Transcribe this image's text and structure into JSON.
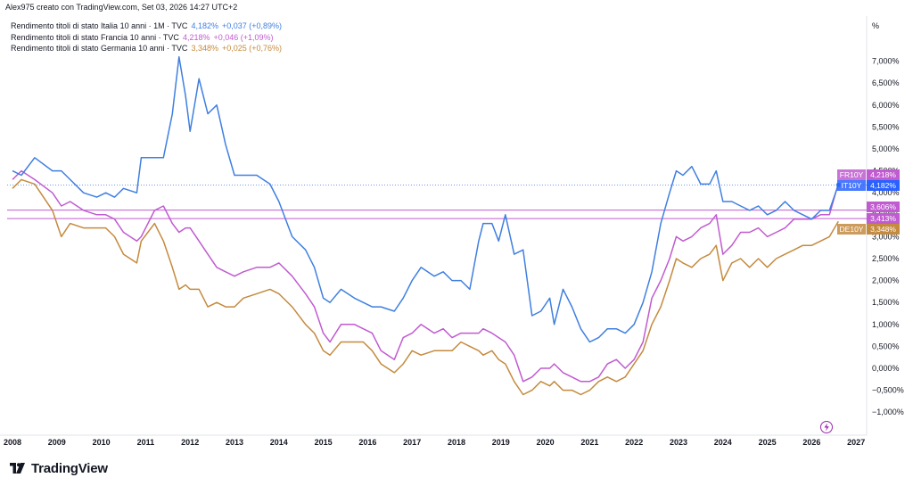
{
  "header": {
    "created_by": "Alex975 creato con TradingView.com, Set 03, 2026 14:27 UTC+2"
  },
  "legend": [
    {
      "name": "Rendimento titoli di stato Italia 10 anni · 1M · TVC",
      "value": "4,182%",
      "change": "+0,037 (+0,89%)",
      "color": "#3f7fe0"
    },
    {
      "name": "Rendimento titoli di stato Francia 10 anni · TVC",
      "value": "4,218%",
      "change": "+0,046 (+1,09%)",
      "color": "#c05bd0"
    },
    {
      "name": "Rendimento titoli di stato Germania 10 anni · TVC",
      "value": "3,348%",
      "change": "+0,025 (+0,76%)",
      "color": "#c48a3e"
    }
  ],
  "brand": {
    "name": "TradingView"
  },
  "axis": {
    "unit": "%"
  },
  "badges": [
    {
      "label": "FR10Y",
      "value": "4,218%",
      "color": "#c05bd0"
    },
    {
      "label": "IT10Y",
      "value": "4,182%",
      "color": "#2962ff"
    },
    {
      "label": "",
      "value": "3,606%",
      "color": "#c05bd0"
    },
    {
      "label": "",
      "value": "3,413%",
      "color": "#c05bd0"
    },
    {
      "label": "DE10Y",
      "value": "3,348%",
      "color": "#c48a3e"
    }
  ],
  "chart_data": {
    "type": "line",
    "xlabel": "",
    "ylabel": "%",
    "xlim": [
      2008.0,
      2027.4
    ],
    "ylim": [
      -1.4,
      8.2
    ],
    "x_ticks": [
      "2008",
      "2009",
      "2010",
      "2011",
      "2012",
      "2013",
      "2014",
      "2015",
      "2016",
      "2017",
      "2018",
      "2019",
      "2020",
      "2021",
      "2022",
      "2023",
      "2024",
      "2025",
      "2026",
      "2027"
    ],
    "y_ticks": [
      "7,000%",
      "6,500%",
      "6,000%",
      "5,500%",
      "5,000%",
      "4,500%",
      "4,000%",
      "3,500%",
      "3,000%",
      "2,500%",
      "2,000%",
      "1,500%",
      "1,000%",
      "0,500%",
      "0,000%",
      "−0,500%",
      "−1,000%"
    ],
    "y_tick_values": [
      7,
      6.5,
      6,
      5.5,
      5,
      4.5,
      4,
      3.5,
      3,
      2.5,
      2,
      1.5,
      1,
      0.5,
      0,
      -0.5,
      -1
    ],
    "horizontal_levels": [
      3.606,
      3.413
    ],
    "series": [
      {
        "name": "IT10Y",
        "color": "#3f7fe0",
        "x": [
          2008.0,
          2008.2,
          2008.5,
          2008.9,
          2009.1,
          2009.3,
          2009.6,
          2009.9,
          2010.1,
          2010.3,
          2010.5,
          2010.8,
          2010.9,
          2011.2,
          2011.4,
          2011.6,
          2011.75,
          2011.9,
          2012.0,
          2012.2,
          2012.4,
          2012.6,
          2012.8,
          2013.0,
          2013.2,
          2013.5,
          2013.8,
          2014.0,
          2014.3,
          2014.6,
          2014.8,
          2015.0,
          2015.15,
          2015.4,
          2015.7,
          2015.9,
          2016.1,
          2016.3,
          2016.6,
          2016.8,
          2017.0,
          2017.2,
          2017.5,
          2017.7,
          2017.9,
          2018.1,
          2018.3,
          2018.5,
          2018.6,
          2018.8,
          2018.95,
          2019.1,
          2019.3,
          2019.5,
          2019.7,
          2019.9,
          2020.1,
          2020.2,
          2020.4,
          2020.6,
          2020.8,
          2021.0,
          2021.2,
          2021.4,
          2021.6,
          2021.8,
          2022.0,
          2022.2,
          2022.4,
          2022.6,
          2022.8,
          2022.95,
          2023.1,
          2023.3,
          2023.5,
          2023.7,
          2023.85,
          2024.0,
          2024.2,
          2024.4,
          2024.6,
          2024.8,
          2025.0,
          2025.2,
          2025.4,
          2025.6,
          2025.8,
          2026.0,
          2026.2,
          2026.4,
          2026.6
        ],
        "values": [
          4.5,
          4.4,
          4.8,
          4.5,
          4.5,
          4.3,
          4.0,
          3.9,
          4.0,
          3.9,
          4.1,
          4.0,
          4.8,
          4.8,
          4.8,
          5.8,
          7.1,
          6.2,
          5.4,
          6.6,
          5.8,
          6.0,
          5.1,
          4.4,
          4.4,
          4.4,
          4.2,
          3.8,
          3.0,
          2.7,
          2.3,
          1.6,
          1.5,
          1.8,
          1.6,
          1.5,
          1.4,
          1.4,
          1.3,
          1.6,
          2.0,
          2.3,
          2.1,
          2.2,
          2.0,
          2.0,
          1.8,
          2.9,
          3.3,
          3.3,
          2.9,
          3.5,
          2.6,
          2.7,
          1.2,
          1.3,
          1.6,
          1.0,
          1.8,
          1.4,
          0.9,
          0.6,
          0.7,
          0.9,
          0.9,
          0.8,
          1.0,
          1.5,
          2.2,
          3.3,
          4.0,
          4.5,
          4.4,
          4.6,
          4.2,
          4.2,
          4.5,
          3.8,
          3.8,
          3.7,
          3.6,
          3.7,
          3.5,
          3.6,
          3.8,
          3.6,
          3.5,
          3.4,
          3.6,
          3.6,
          4.18
        ]
      },
      {
        "name": "FR10Y",
        "color": "#c05bd0",
        "x": [
          2008.0,
          2008.2,
          2008.5,
          2008.9,
          2009.1,
          2009.3,
          2009.6,
          2009.9,
          2010.1,
          2010.3,
          2010.5,
          2010.8,
          2010.9,
          2011.2,
          2011.4,
          2011.6,
          2011.75,
          2011.9,
          2012.0,
          2012.2,
          2012.4,
          2012.6,
          2012.8,
          2013.0,
          2013.2,
          2013.5,
          2013.8,
          2014.0,
          2014.3,
          2014.6,
          2014.8,
          2015.0,
          2015.15,
          2015.4,
          2015.7,
          2015.9,
          2016.1,
          2016.3,
          2016.6,
          2016.8,
          2017.0,
          2017.2,
          2017.5,
          2017.7,
          2017.9,
          2018.1,
          2018.3,
          2018.5,
          2018.6,
          2018.8,
          2018.95,
          2019.1,
          2019.3,
          2019.5,
          2019.7,
          2019.9,
          2020.1,
          2020.2,
          2020.4,
          2020.6,
          2020.8,
          2021.0,
          2021.2,
          2021.4,
          2021.6,
          2021.8,
          2022.0,
          2022.2,
          2022.4,
          2022.6,
          2022.8,
          2022.95,
          2023.1,
          2023.3,
          2023.5,
          2023.7,
          2023.85,
          2024.0,
          2024.2,
          2024.4,
          2024.6,
          2024.8,
          2025.0,
          2025.2,
          2025.4,
          2025.6,
          2025.8,
          2026.0,
          2026.2,
          2026.4,
          2026.6
        ],
        "values": [
          4.3,
          4.5,
          4.3,
          4.0,
          3.7,
          3.8,
          3.6,
          3.5,
          3.5,
          3.4,
          3.1,
          2.9,
          3.0,
          3.6,
          3.7,
          3.3,
          3.1,
          3.2,
          3.2,
          2.9,
          2.6,
          2.3,
          2.2,
          2.1,
          2.2,
          2.3,
          2.3,
          2.4,
          2.1,
          1.7,
          1.4,
          0.8,
          0.6,
          1.0,
          1.0,
          0.9,
          0.8,
          0.4,
          0.2,
          0.7,
          0.8,
          1.0,
          0.8,
          0.9,
          0.7,
          0.8,
          0.8,
          0.8,
          0.9,
          0.8,
          0.7,
          0.6,
          0.3,
          -0.3,
          -0.2,
          0.0,
          0.0,
          0.1,
          -0.1,
          -0.2,
          -0.3,
          -0.3,
          -0.2,
          0.1,
          0.2,
          0.0,
          0.2,
          0.6,
          1.6,
          2.0,
          2.5,
          3.0,
          2.9,
          3.0,
          3.2,
          3.3,
          3.5,
          2.6,
          2.8,
          3.1,
          3.1,
          3.2,
          3.0,
          3.1,
          3.2,
          3.4,
          3.4,
          3.4,
          3.5,
          3.5,
          4.22
        ]
      },
      {
        "name": "DE10Y",
        "color": "#c48a3e",
        "x": [
          2008.0,
          2008.2,
          2008.5,
          2008.9,
          2009.1,
          2009.3,
          2009.6,
          2009.9,
          2010.1,
          2010.3,
          2010.5,
          2010.8,
          2010.9,
          2011.2,
          2011.4,
          2011.6,
          2011.75,
          2011.9,
          2012.0,
          2012.2,
          2012.4,
          2012.6,
          2012.8,
          2013.0,
          2013.2,
          2013.5,
          2013.8,
          2014.0,
          2014.3,
          2014.6,
          2014.8,
          2015.0,
          2015.15,
          2015.4,
          2015.7,
          2015.9,
          2016.1,
          2016.3,
          2016.6,
          2016.8,
          2017.0,
          2017.2,
          2017.5,
          2017.7,
          2017.9,
          2018.1,
          2018.3,
          2018.5,
          2018.6,
          2018.8,
          2018.95,
          2019.1,
          2019.3,
          2019.5,
          2019.7,
          2019.9,
          2020.1,
          2020.2,
          2020.4,
          2020.6,
          2020.8,
          2021.0,
          2021.2,
          2021.4,
          2021.6,
          2021.8,
          2022.0,
          2022.2,
          2022.4,
          2022.6,
          2022.8,
          2022.95,
          2023.1,
          2023.3,
          2023.5,
          2023.7,
          2023.85,
          2024.0,
          2024.2,
          2024.4,
          2024.6,
          2024.8,
          2025.0,
          2025.2,
          2025.4,
          2025.6,
          2025.8,
          2026.0,
          2026.2,
          2026.4,
          2026.6
        ],
        "values": [
          4.1,
          4.3,
          4.2,
          3.6,
          3.0,
          3.3,
          3.2,
          3.2,
          3.2,
          3.0,
          2.6,
          2.4,
          2.9,
          3.3,
          2.9,
          2.3,
          1.8,
          1.9,
          1.8,
          1.8,
          1.4,
          1.5,
          1.4,
          1.4,
          1.6,
          1.7,
          1.8,
          1.7,
          1.4,
          1.0,
          0.8,
          0.4,
          0.3,
          0.6,
          0.6,
          0.6,
          0.4,
          0.1,
          -0.1,
          0.1,
          0.4,
          0.3,
          0.4,
          0.4,
          0.4,
          0.6,
          0.5,
          0.4,
          0.3,
          0.4,
          0.2,
          0.1,
          -0.3,
          -0.6,
          -0.5,
          -0.3,
          -0.4,
          -0.3,
          -0.5,
          -0.5,
          -0.6,
          -0.5,
          -0.3,
          -0.2,
          -0.3,
          -0.2,
          0.1,
          0.4,
          1.0,
          1.4,
          2.0,
          2.5,
          2.4,
          2.3,
          2.5,
          2.6,
          2.8,
          2.0,
          2.4,
          2.5,
          2.3,
          2.5,
          2.3,
          2.5,
          2.6,
          2.7,
          2.8,
          2.8,
          2.9,
          3.0,
          3.35
        ]
      }
    ]
  }
}
